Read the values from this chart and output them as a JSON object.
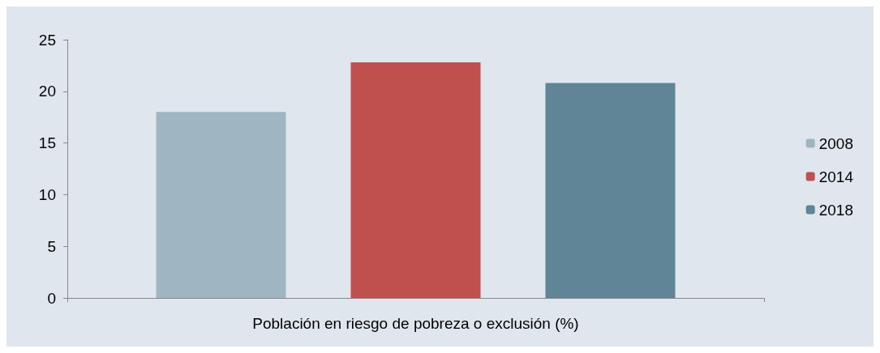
{
  "chart_data": {
    "type": "bar",
    "categories": [
      "Población en riesgo de pobreza o exclusión (%)"
    ],
    "series": [
      {
        "name": "2008",
        "color": "#9fb6c2",
        "values": [
          18
        ]
      },
      {
        "name": "2014",
        "color": "#c0504d",
        "values": [
          22.8
        ]
      },
      {
        "name": "2018",
        "color": "#5f8596",
        "values": [
          20.8
        ]
      }
    ],
    "ylim": [
      0,
      25
    ],
    "yticks": [
      0,
      5,
      10,
      15,
      20,
      25
    ],
    "grid": false,
    "legend": "right"
  }
}
